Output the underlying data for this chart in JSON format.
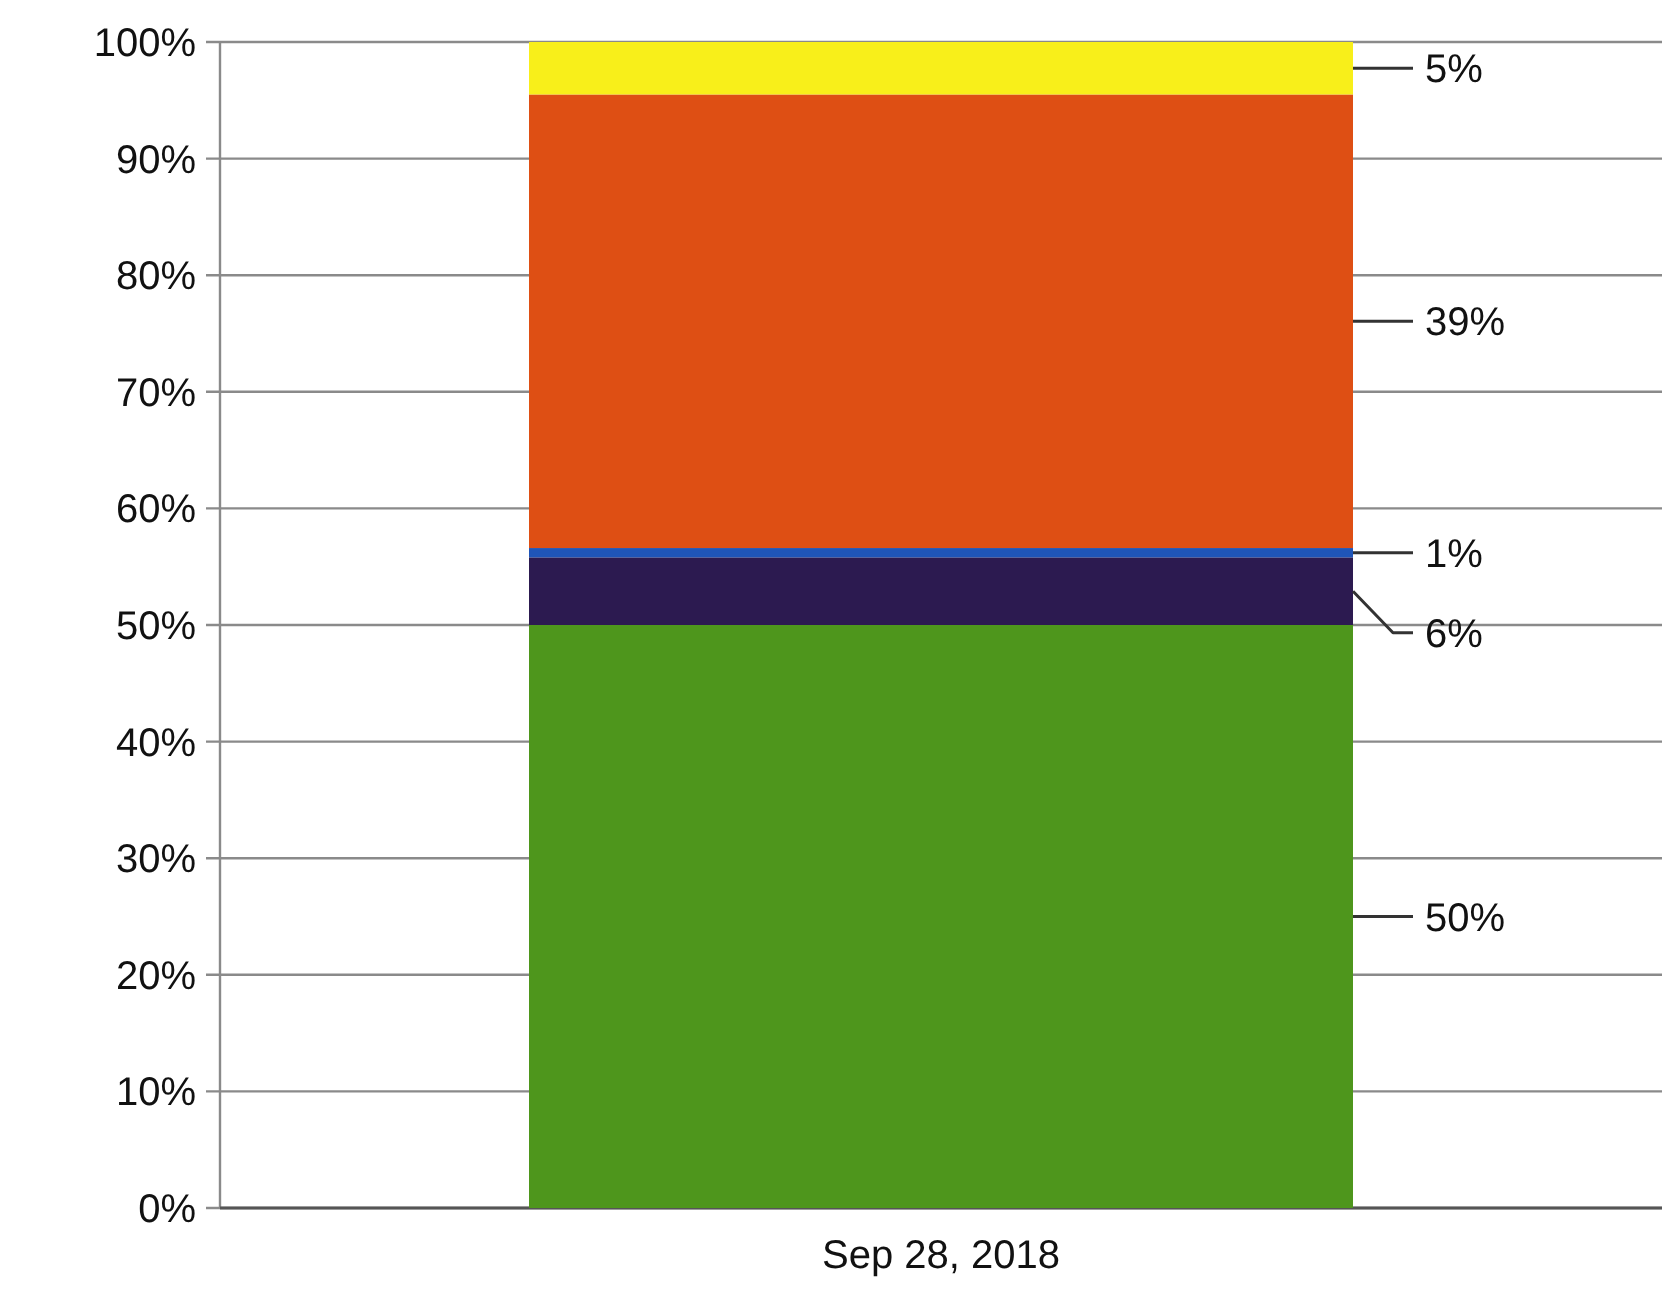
{
  "chart_data": {
    "type": "bar",
    "stacked": true,
    "categories": [
      "Sep 28, 2018"
    ],
    "series": [
      {
        "color": "#4e961c",
        "values": [
          50
        ],
        "value_labels": [
          "50%"
        ]
      },
      {
        "color": "#2c1a50",
        "values": [
          5.8
        ],
        "value_labels": [
          "6%"
        ]
      },
      {
        "color": "#1f55b8",
        "values": [
          0.8
        ],
        "value_labels": [
          "1%"
        ]
      },
      {
        "color": "#de4f14",
        "values": [
          38.9
        ],
        "value_labels": [
          "39%"
        ]
      },
      {
        "color": "#f8ef1a",
        "values": [
          4.5
        ],
        "value_labels": [
          "5%"
        ]
      }
    ],
    "ylim": [
      0,
      100
    ],
    "yticks": [
      {
        "value": 0,
        "label": "0%"
      },
      {
        "value": 10,
        "label": "10%"
      },
      {
        "value": 20,
        "label": "20%"
      },
      {
        "value": 30,
        "label": "30%"
      },
      {
        "value": 40,
        "label": "40%"
      },
      {
        "value": 50,
        "label": "50%"
      },
      {
        "value": 60,
        "label": "60%"
      },
      {
        "value": 70,
        "label": "70%"
      },
      {
        "value": 80,
        "label": "80%"
      },
      {
        "value": 90,
        "label": "90%"
      },
      {
        "value": 100,
        "label": "100%"
      }
    ],
    "grid": "y"
  }
}
